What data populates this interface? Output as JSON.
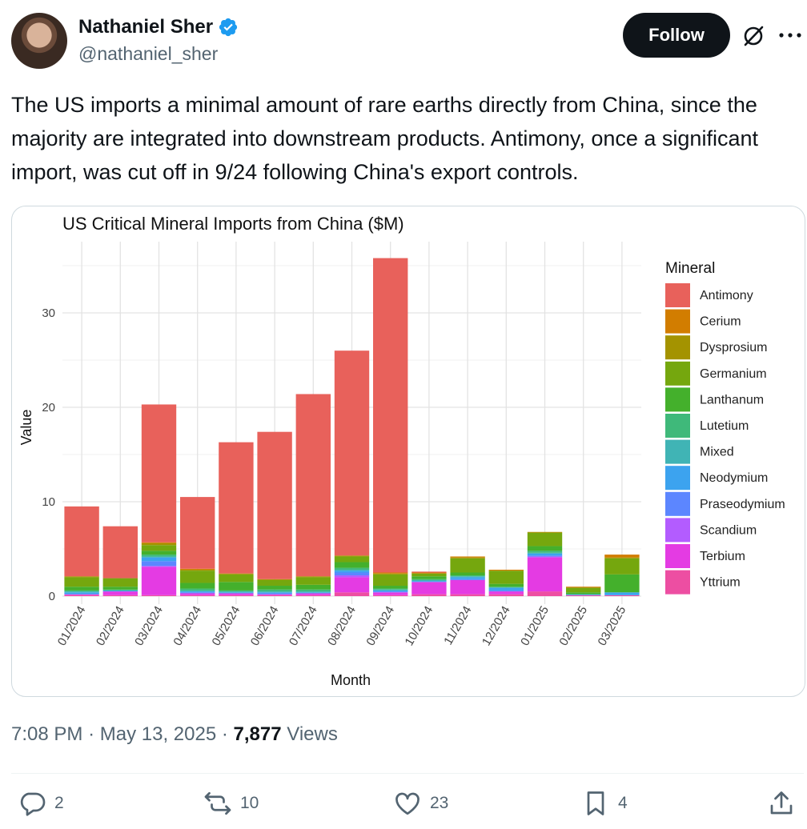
{
  "author": {
    "name": "Nathaniel Sher",
    "handle": "@nathaniel_sher",
    "follow_label": "Follow"
  },
  "tweet_text": "The US imports a minimal amount of rare earths directly from China, since the majority are integrated into downstream products. Antimony, once a significant import, was cut off in 9/24 following China's export controls.",
  "meta": {
    "time": "7:08 PM",
    "date": "May 13, 2025",
    "views_count": "7,877",
    "views_label": "Views"
  },
  "actions": {
    "replies": "2",
    "reposts": "10",
    "likes": "23",
    "bookmarks": "4"
  },
  "colors": {
    "verified": "#1d9bf0",
    "follow_bg": "#0f1419",
    "secondary_text": "#536471"
  },
  "icons": [
    "verified-badge-icon",
    "grok-icon",
    "more-icon",
    "reply-icon",
    "repost-icon",
    "like-icon",
    "bookmark-icon",
    "share-icon"
  ],
  "chart_data": {
    "type": "bar",
    "stacked": true,
    "title": "US Critical Mineral Imports from China ($M)",
    "xlabel": "Month",
    "ylabel": "Value",
    "ylim": [
      0,
      37
    ],
    "yticks": [
      0,
      10,
      20,
      30
    ],
    "legend_title": "Mineral",
    "legend_position": "right",
    "grid": true,
    "categories": [
      "01/2024",
      "02/2024",
      "03/2024",
      "04/2024",
      "05/2024",
      "06/2024",
      "07/2024",
      "08/2024",
      "09/2024",
      "10/2024",
      "11/2024",
      "12/2024",
      "01/2025",
      "02/2025",
      "03/2025"
    ],
    "series": [
      {
        "name": "Yttrium",
        "color": "#ed4ea2",
        "values": [
          0.1,
          0.1,
          0.1,
          0.1,
          0.1,
          0.1,
          0.1,
          0.4,
          0.1,
          0.2,
          0.2,
          0.2,
          0.5,
          0.1,
          0.1
        ]
      },
      {
        "name": "Terbium",
        "color": "#e43be3",
        "values": [
          0.1,
          0.4,
          3.0,
          0.2,
          0.2,
          0.1,
          0.2,
          1.6,
          0.3,
          1.3,
          1.5,
          0.3,
          3.6,
          0.0,
          0.0
        ]
      },
      {
        "name": "Scandium",
        "color": "#b35cff",
        "values": [
          0.0,
          0.0,
          0.1,
          0.0,
          0.0,
          0.0,
          0.0,
          0.2,
          0.0,
          0.0,
          0.0,
          0.0,
          0.1,
          0.0,
          0.0
        ]
      },
      {
        "name": "Praseodymium",
        "color": "#5c86ff",
        "values": [
          0.0,
          0.0,
          0.5,
          0.1,
          0.0,
          0.1,
          0.0,
          0.3,
          0.1,
          0.0,
          0.1,
          0.1,
          0.1,
          0.0,
          0.0
        ]
      },
      {
        "name": "Neodymium",
        "color": "#3ca3ef",
        "values": [
          0.2,
          0.1,
          0.4,
          0.1,
          0.1,
          0.1,
          0.1,
          0.2,
          0.1,
          0.1,
          0.2,
          0.3,
          0.2,
          0.1,
          0.3
        ]
      },
      {
        "name": "Mixed",
        "color": "#40b4b5",
        "values": [
          0.1,
          0.0,
          0.1,
          0.1,
          0.1,
          0.1,
          0.1,
          0.1,
          0.1,
          0.1,
          0.1,
          0.0,
          0.1,
          0.0,
          0.0
        ]
      },
      {
        "name": "Lutetium",
        "color": "#3fb97a",
        "values": [
          0.1,
          0.1,
          0.2,
          0.2,
          0.1,
          0.2,
          0.2,
          0.2,
          0.1,
          0.1,
          0.1,
          0.1,
          0.2,
          0.0,
          0.0
        ]
      },
      {
        "name": "Lanthanum",
        "color": "#44b02c",
        "values": [
          0.4,
          0.3,
          0.4,
          0.6,
          0.9,
          0.4,
          0.5,
          0.6,
          0.3,
          0.3,
          0.3,
          0.3,
          0.5,
          0.2,
          1.9
        ]
      },
      {
        "name": "Germanium",
        "color": "#75a70e",
        "values": [
          1.0,
          0.9,
          0.6,
          1.3,
          0.8,
          0.6,
          0.8,
          0.6,
          1.2,
          0.3,
          1.5,
          1.4,
          1.4,
          0.5,
          1.7
        ]
      },
      {
        "name": "Dysprosium",
        "color": "#a49300",
        "values": [
          0.1,
          0.0,
          0.2,
          0.1,
          0.1,
          0.1,
          0.1,
          0.1,
          0.1,
          0.0,
          0.1,
          0.0,
          0.1,
          0.0,
          0.1
        ]
      },
      {
        "name": "Cerium",
        "color": "#d27d00",
        "values": [
          0.0,
          0.0,
          0.1,
          0.1,
          0.0,
          0.0,
          0.0,
          0.0,
          0.1,
          0.1,
          0.1,
          0.1,
          0.0,
          0.1,
          0.3
        ]
      },
      {
        "name": "Antimony",
        "color": "#e8615b",
        "values": [
          7.4,
          5.5,
          14.6,
          7.6,
          13.9,
          15.6,
          19.3,
          21.7,
          33.3,
          0.1,
          0.0,
          0.0,
          0.0,
          0.0,
          0.0
        ]
      }
    ],
    "legend_order": [
      "Antimony",
      "Cerium",
      "Dysprosium",
      "Germanium",
      "Lanthanum",
      "Lutetium",
      "Mixed",
      "Neodymium",
      "Praseodymium",
      "Scandium",
      "Terbium",
      "Yttrium"
    ]
  }
}
